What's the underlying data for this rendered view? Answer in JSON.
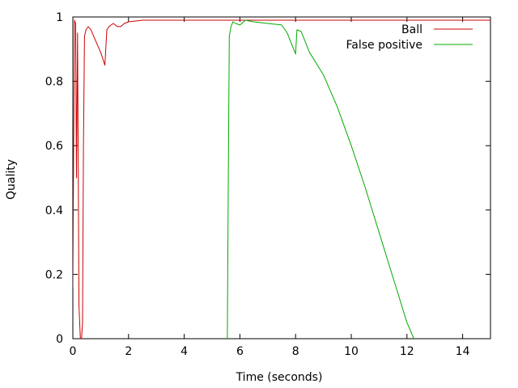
{
  "chart_data": {
    "type": "line",
    "xlabel": "Time (seconds)",
    "ylabel": "Quality",
    "xlim": [
      0,
      15
    ],
    "ylim": [
      0,
      1
    ],
    "xticks": [
      0,
      2,
      4,
      6,
      8,
      10,
      12,
      14
    ],
    "yticks": [
      0,
      0.2,
      0.4,
      0.6,
      0.8,
      1
    ],
    "ytick_labels": [
      "0",
      "0.2",
      "0.4",
      "0.6",
      "0.8",
      "1"
    ],
    "grid": false,
    "legend_position": "top-right",
    "series": [
      {
        "name": "Ball",
        "color": "#cc0000",
        "x": [
          0.0,
          0.03,
          0.06,
          0.1,
          0.13,
          0.17,
          0.22,
          0.27,
          0.31,
          0.35,
          0.38,
          0.42,
          0.47,
          0.55,
          0.65,
          0.8,
          1.0,
          1.15,
          1.22,
          1.3,
          1.45,
          1.6,
          1.72,
          1.85,
          2.0,
          2.5,
          3.0,
          4.0,
          5.0,
          6.0,
          7.0,
          8.0,
          9.0,
          10.0,
          11.0,
          12.0,
          13.0,
          14.0,
          15.0
        ],
        "y": [
          0.16,
          0.6,
          0.99,
          0.98,
          0.5,
          0.95,
          0.1,
          0.0,
          0.0,
          0.05,
          0.6,
          0.94,
          0.96,
          0.97,
          0.96,
          0.93,
          0.89,
          0.85,
          0.96,
          0.97,
          0.98,
          0.97,
          0.97,
          0.98,
          0.985,
          0.99,
          0.99,
          0.99,
          0.99,
          0.99,
          0.99,
          0.99,
          0.99,
          0.99,
          0.99,
          0.99,
          0.99,
          0.99,
          0.99
        ]
      },
      {
        "name": "False positive",
        "color": "#00aa00",
        "x": [
          5.55,
          5.58,
          5.62,
          5.68,
          5.75,
          5.85,
          6.0,
          6.2,
          6.5,
          7.0,
          7.5,
          7.7,
          8.0,
          8.05,
          8.2,
          8.5,
          9.0,
          9.5,
          10.0,
          10.5,
          11.0,
          11.5,
          12.0,
          12.5
        ],
        "y": [
          0.0,
          0.47,
          0.94,
          0.97,
          0.985,
          0.98,
          0.975,
          0.99,
          0.985,
          0.98,
          0.975,
          0.95,
          0.885,
          0.96,
          0.955,
          0.89,
          0.82,
          0.72,
          0.6,
          0.47,
          0.33,
          0.19,
          0.05,
          -0.05
        ]
      }
    ]
  }
}
